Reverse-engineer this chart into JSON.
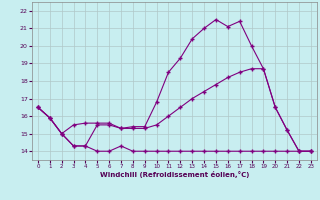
{
  "xlabel": "Windchill (Refroidissement éolien,°C)",
  "bg_color": "#c8eef0",
  "line_color": "#800080",
  "grid_color": "#b0c8c8",
  "xlim": [
    -0.5,
    23.5
  ],
  "ylim": [
    13.5,
    22.5
  ],
  "yticks": [
    14,
    15,
    16,
    17,
    18,
    19,
    20,
    21,
    22
  ],
  "xticks": [
    0,
    1,
    2,
    3,
    4,
    5,
    6,
    7,
    8,
    9,
    10,
    11,
    12,
    13,
    14,
    15,
    16,
    17,
    18,
    19,
    20,
    21,
    22,
    23
  ],
  "line1_x": [
    0,
    1,
    2,
    3,
    4,
    5,
    6,
    7,
    8,
    9,
    10,
    11,
    12,
    13,
    14,
    15,
    16,
    17,
    18,
    19,
    20,
    21,
    22,
    23
  ],
  "line1_y": [
    16.5,
    15.9,
    15.0,
    14.3,
    14.3,
    14.0,
    14.0,
    14.3,
    14.0,
    14.0,
    14.0,
    14.0,
    14.0,
    14.0,
    14.0,
    14.0,
    14.0,
    14.0,
    14.0,
    14.0,
    14.0,
    14.0,
    14.0,
    14.0
  ],
  "line2_x": [
    0,
    1,
    2,
    3,
    4,
    5,
    6,
    7,
    8,
    9,
    10,
    11,
    12,
    13,
    14,
    15,
    16,
    17,
    18,
    19,
    20,
    21,
    22,
    23
  ],
  "line2_y": [
    16.5,
    15.9,
    15.0,
    15.5,
    15.6,
    15.6,
    15.6,
    15.3,
    15.3,
    15.3,
    15.5,
    16.0,
    16.5,
    17.0,
    17.4,
    17.8,
    18.2,
    18.5,
    18.7,
    18.7,
    16.5,
    15.2,
    14.0,
    14.0
  ],
  "line3_x": [
    0,
    1,
    2,
    3,
    4,
    5,
    6,
    7,
    8,
    9,
    10,
    11,
    12,
    13,
    14,
    15,
    16,
    17,
    18,
    19,
    20,
    21,
    22,
    23
  ],
  "line3_y": [
    16.5,
    15.9,
    15.0,
    14.3,
    14.3,
    15.5,
    15.5,
    15.3,
    15.4,
    15.4,
    16.8,
    18.5,
    19.3,
    20.4,
    21.0,
    21.5,
    21.1,
    21.4,
    20.0,
    18.7,
    16.5,
    15.2,
    14.0,
    14.0
  ]
}
